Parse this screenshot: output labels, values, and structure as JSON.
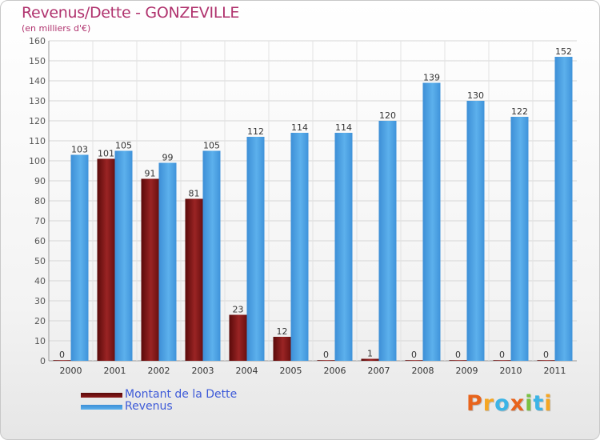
{
  "header": {
    "title": "Revenus/Dette - GONZEVILLE",
    "subtitle": "(en milliers d'€)"
  },
  "chart_data": {
    "type": "bar",
    "categories": [
      "2000",
      "2001",
      "2002",
      "2003",
      "2004",
      "2005",
      "2006",
      "2007",
      "2008",
      "2009",
      "2010",
      "2011"
    ],
    "series": [
      {
        "name": "Montant de la Dette",
        "color": "#8b1a1a",
        "values": [
          0,
          101,
          91,
          81,
          23,
          12,
          0,
          1,
          0,
          0,
          0,
          0
        ]
      },
      {
        "name": "Revenus",
        "color": "#4ea4e4",
        "values": [
          103,
          105,
          99,
          105,
          112,
          114,
          114,
          120,
          139,
          130,
          122,
          152
        ]
      }
    ],
    "ylim": [
      0,
      160
    ],
    "yticks": [
      0,
      10,
      20,
      30,
      40,
      50,
      60,
      70,
      80,
      90,
      100,
      110,
      120,
      130,
      140,
      150,
      160
    ],
    "grid": true,
    "legend": "bottom-left"
  },
  "logo": {
    "text": "Proxiti",
    "colors": [
      "#e8641c",
      "#f5a623",
      "#3cb4e6",
      "#e8641c",
      "#7ac142",
      "#3cb4e6",
      "#f5a623"
    ]
  }
}
